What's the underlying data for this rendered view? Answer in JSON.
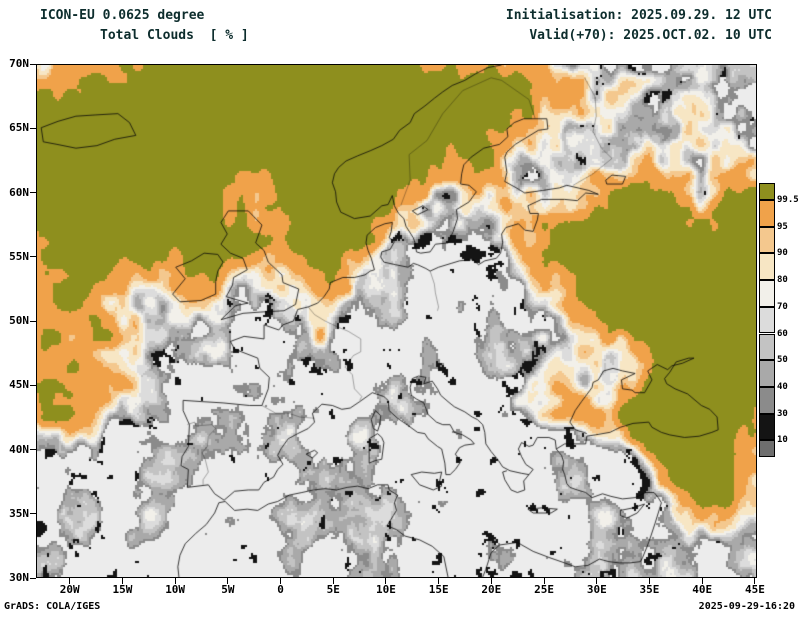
{
  "header": {
    "model_line": "ICON-EU 0.0625 degree",
    "variable_line": "Total Clouds  [ % ]",
    "init_line": "Initialisation: 2025.09.29. 12 UTC",
    "valid_line": "Valid(+70): 2025.OCT.02. 10 UTC"
  },
  "map": {
    "lat_labels": [
      "70N",
      "65N",
      "60N",
      "55N",
      "50N",
      "45N",
      "40N",
      "35N",
      "30N"
    ],
    "lon_labels": [
      "20W",
      "15W",
      "10W",
      "5W",
      "0",
      "5E",
      "10E",
      "15E",
      "20E",
      "25E",
      "30E",
      "35E",
      "40E",
      "45E"
    ]
  },
  "colorbar": {
    "labels": [
      "99.5",
      "95",
      "90",
      "80",
      "70",
      "60",
      "50",
      "40",
      "30",
      "10"
    ],
    "colors": [
      "#8e8f1e",
      "#f0a24a",
      "#f4c88e",
      "#f7e6c4",
      "#f2f0ea",
      "#dcdcdc",
      "#c3c3c3",
      "#a9a9a9",
      "#8b8b8b",
      "#141414",
      "#6e6e6e"
    ]
  },
  "footer": {
    "left": "GrADS: COLA/IGES",
    "right": "2025-09-29-16:20"
  },
  "colors": {
    "map_background": "#ececec",
    "header_text": "#0d2d2d",
    "frame": "#000000"
  }
}
